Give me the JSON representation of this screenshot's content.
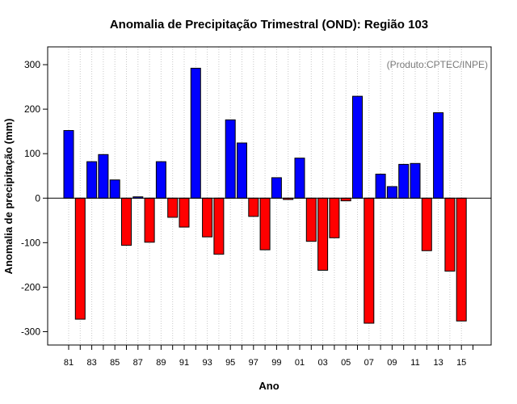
{
  "chart_data": {
    "type": "bar",
    "title": "Anomalia de Precipitação Trimestral (OND): Região 103",
    "xlabel": "Ano",
    "ylabel": "Anomalia de precipitação (mm)",
    "credit": "(Produto:CPTEC/INPE)",
    "ylim": [
      -330,
      340
    ],
    "yticks": [
      -300,
      -200,
      -100,
      0,
      100,
      200,
      300
    ],
    "categories": [
      "81",
      "82",
      "83",
      "84",
      "85",
      "86",
      "87",
      "88",
      "89",
      "90",
      "91",
      "92",
      "93",
      "94",
      "95",
      "96",
      "97",
      "98",
      "99",
      "00",
      "01",
      "02",
      "03",
      "04",
      "05",
      "06",
      "07",
      "08",
      "09",
      "10",
      "11",
      "12",
      "13",
      "14",
      "15"
    ],
    "tick_labels_shown": [
      "81",
      "83",
      "85",
      "87",
      "89",
      "91",
      "93",
      "95",
      "97",
      "99",
      "01",
      "03",
      "05",
      "07",
      "09",
      "11",
      "13",
      "15"
    ],
    "values": [
      152,
      -272,
      82,
      98,
      41,
      -106,
      3,
      -99,
      82,
      -43,
      -65,
      292,
      -87,
      -126,
      176,
      124,
      -41,
      -116,
      46,
      -3,
      90,
      -97,
      -162,
      -89,
      -6,
      229,
      -281,
      54,
      26,
      76,
      78,
      -118,
      192,
      -164,
      -276
    ],
    "grid": true,
    "colors": {
      "positive": "#0000ff",
      "negative": "#ff0000",
      "grid": "#c8c8c8",
      "zero_line": "#000000"
    }
  }
}
